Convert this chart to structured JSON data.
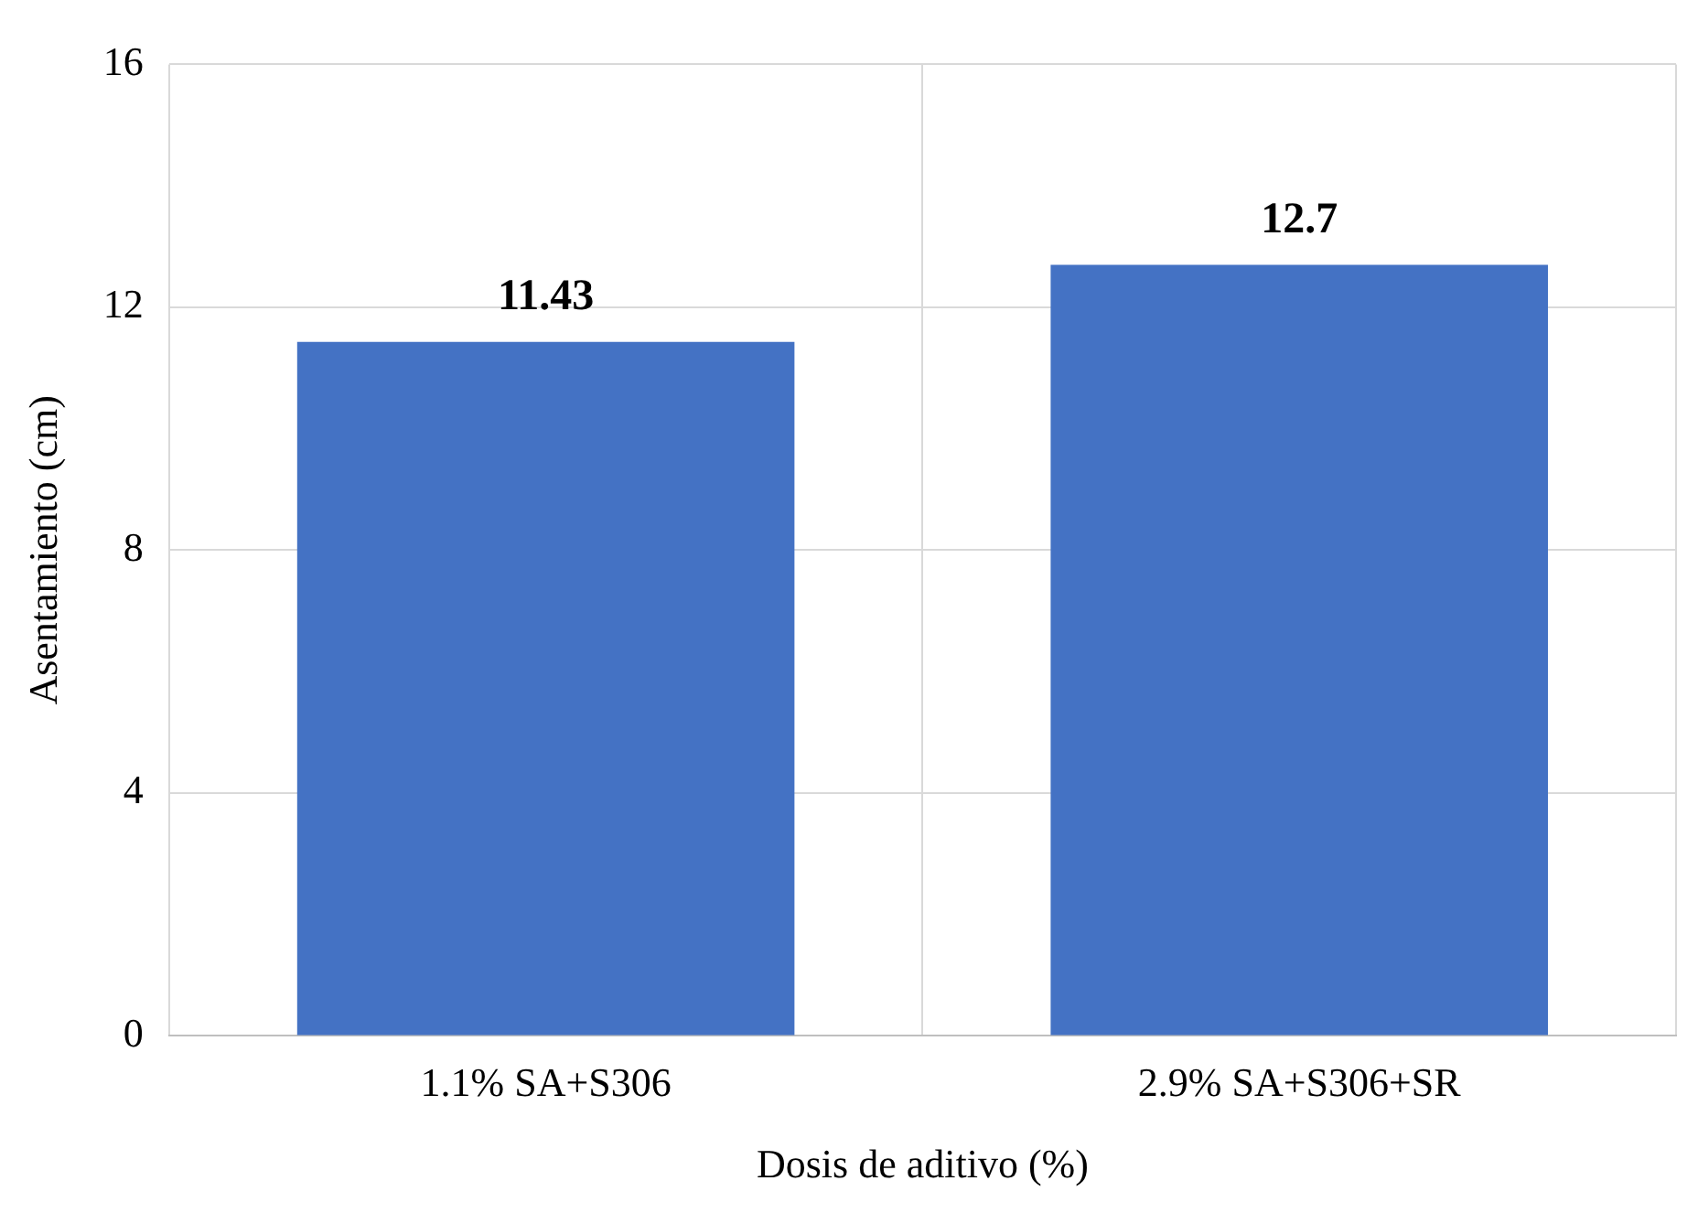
{
  "chart_data": {
    "type": "bar",
    "categories": [
      "1.1% SA+S306",
      "2.9% SA+S306+SR"
    ],
    "values": [
      11.43,
      12.7
    ],
    "color": "#4472c4",
    "xlabel": "Dosis de aditivo (%)",
    "ylabel": "Asentamiento (cm)",
    "ylim": [
      0,
      16
    ],
    "yticks": [
      0,
      4,
      8,
      12,
      16
    ],
    "grid": true,
    "data_labels": true
  }
}
